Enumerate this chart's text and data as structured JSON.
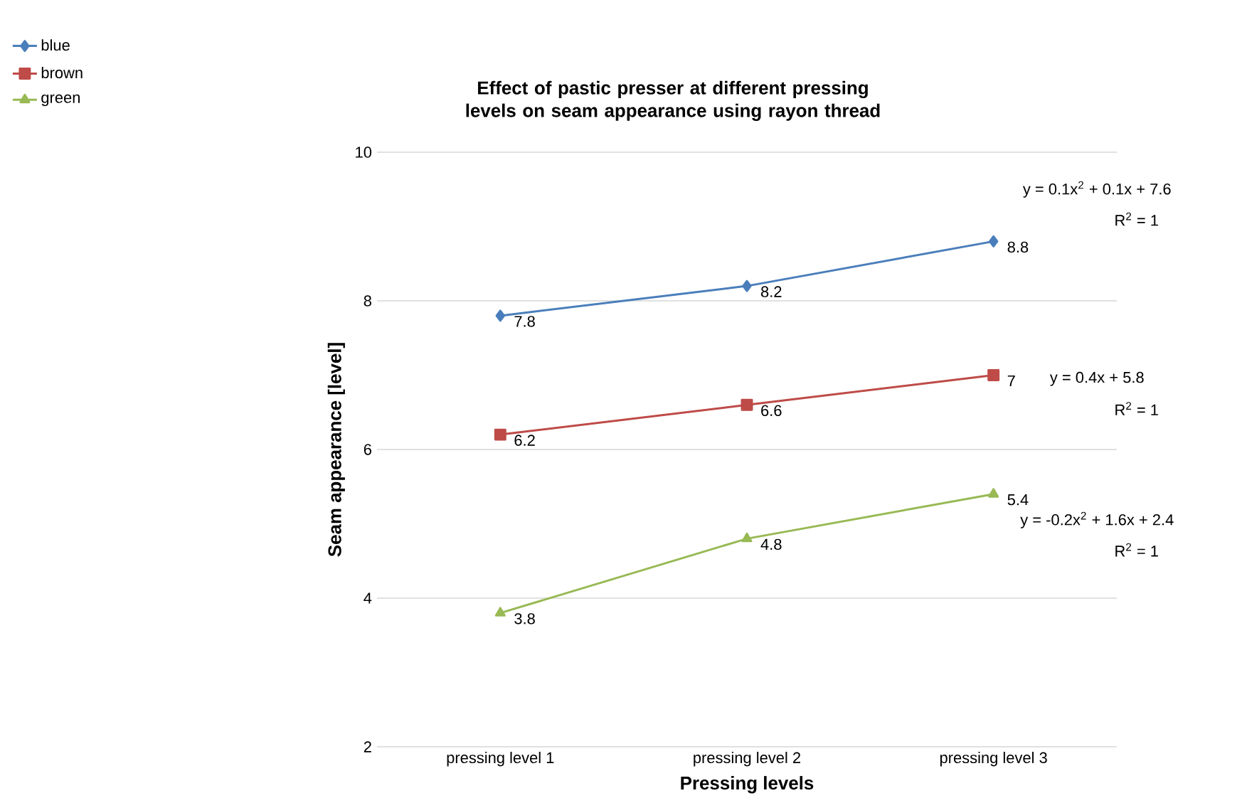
{
  "chart_data": {
    "type": "line",
    "title": "Effect of pastic presser at different pressing levels on seam appearance using rayon thread",
    "xlabel": "Pressing levels",
    "ylabel": "Seam appearance  [level]",
    "categories": [
      "pressing level 1",
      "pressing level 2",
      "pressing level 3"
    ],
    "series": [
      {
        "name": "blue",
        "color": "#4a7ebb",
        "marker": "diamond",
        "values": [
          7.8,
          8.2,
          8.8
        ]
      },
      {
        "name": "brown",
        "color": "#be4b48",
        "marker": "square",
        "values": [
          6.2,
          6.6,
          7
        ]
      },
      {
        "name": "green",
        "color": "#98b954",
        "marker": "triangle",
        "values": [
          3.8,
          4.8,
          5.4
        ]
      }
    ],
    "ylim": [
      2,
      10
    ],
    "yticks": [
      2,
      4,
      6,
      8,
      10
    ],
    "grid": "y",
    "legend": "top left",
    "data_labels": true,
    "line_style": "solid",
    "annotations": [
      "y = 0.1x$^{2}$ + 0.1x + 7.6",
      "R$^{2}$ = 1",
      "y = 0.4x + 5.8",
      "R$^{2}$ = 1",
      "y = -0.2x$^{2}$ + 1.6x + 2.4",
      "R$^{2}$ = 1"
    ]
  }
}
